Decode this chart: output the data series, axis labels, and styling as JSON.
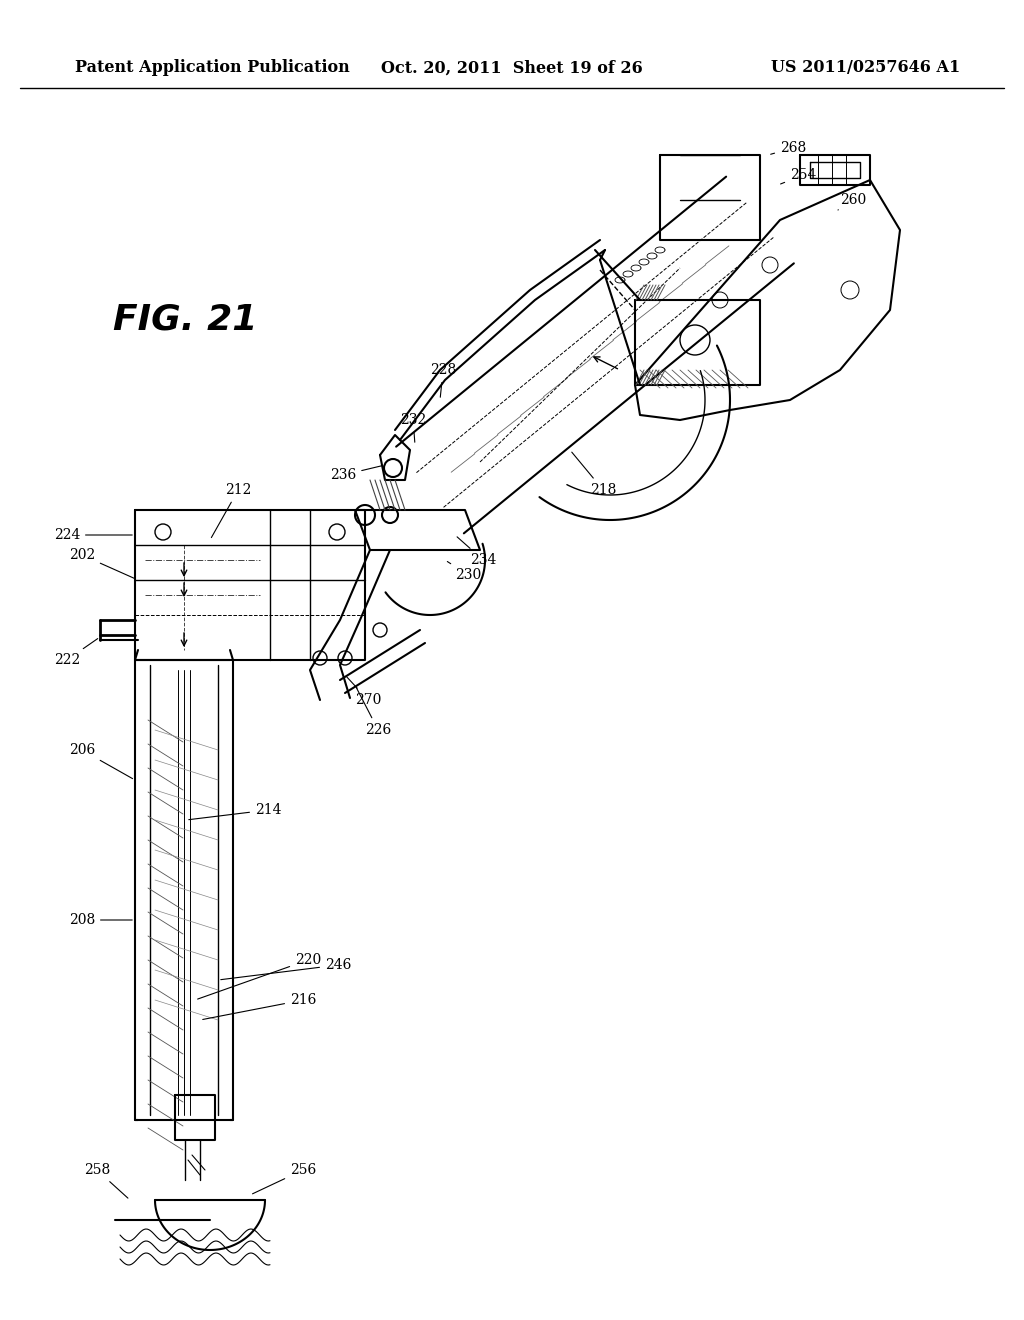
{
  "background_color": "#ffffff",
  "header_left": "Patent Application Publication",
  "header_center": "Oct. 20, 2011  Sheet 19 of 26",
  "header_right": "US 2011/0257646 A1",
  "fig_label": "FIG. 21",
  "header_fontsize": 11.5,
  "fig_label_fontsize": 26,
  "label_fontsize": 10,
  "page_width": 10.24,
  "page_height": 13.2,
  "dpi": 100
}
